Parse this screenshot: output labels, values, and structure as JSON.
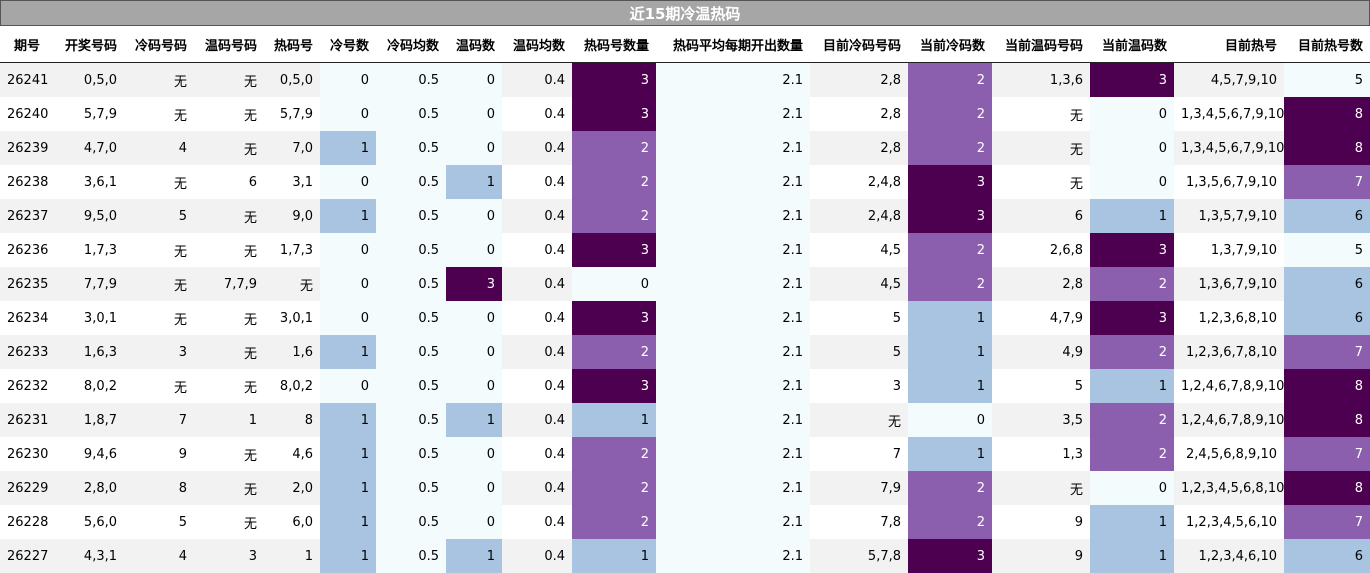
{
  "title": "近15期冷温热码",
  "headers": [
    "期号",
    "开奖号码",
    "冷码号码",
    "温码号码",
    "热码号",
    "冷号数",
    "冷码均数",
    "温码数",
    "温码均数",
    "热码号数量",
    "热码平均每期开出数量",
    "目前冷码号码",
    "当前冷码数",
    "当前温码号码",
    "当前温码数",
    "目前热号",
    "目前热号数"
  ],
  "colors": {
    "title_bg": "#a6a6a6",
    "level0": "#f4fbfc",
    "level1": "#a8c4e0",
    "level2": "#8c5fae",
    "level3": "#4d0050"
  },
  "rows": [
    [
      "26241",
      "0,5,0",
      "无",
      "无",
      "0,5,0",
      "0",
      "0.5",
      "0",
      "0.4",
      "3",
      "2.1",
      "2,8",
      "2",
      "1,3,6",
      "3",
      "4,5,7,9,10",
      "5"
    ],
    [
      "26240",
      "5,7,9",
      "无",
      "无",
      "5,7,9",
      "0",
      "0.5",
      "0",
      "0.4",
      "3",
      "2.1",
      "2,8",
      "2",
      "无",
      "0",
      "1,3,4,5,6,7,9,10",
      "8"
    ],
    [
      "26239",
      "4,7,0",
      "4",
      "无",
      "7,0",
      "1",
      "0.5",
      "0",
      "0.4",
      "2",
      "2.1",
      "2,8",
      "2",
      "无",
      "0",
      "1,3,4,5,6,7,9,10",
      "8"
    ],
    [
      "26238",
      "3,6,1",
      "无",
      "6",
      "3,1",
      "0",
      "0.5",
      "1",
      "0.4",
      "2",
      "2.1",
      "2,4,8",
      "3",
      "无",
      "0",
      "1,3,5,6,7,9,10",
      "7"
    ],
    [
      "26237",
      "9,5,0",
      "5",
      "无",
      "9,0",
      "1",
      "0.5",
      "0",
      "0.4",
      "2",
      "2.1",
      "2,4,8",
      "3",
      "6",
      "1",
      "1,3,5,7,9,10",
      "6"
    ],
    [
      "26236",
      "1,7,3",
      "无",
      "无",
      "1,7,3",
      "0",
      "0.5",
      "0",
      "0.4",
      "3",
      "2.1",
      "4,5",
      "2",
      "2,6,8",
      "3",
      "1,3,7,9,10",
      "5"
    ],
    [
      "26235",
      "7,7,9",
      "无",
      "7,7,9",
      "无",
      "0",
      "0.5",
      "3",
      "0.4",
      "0",
      "2.1",
      "4,5",
      "2",
      "2,8",
      "2",
      "1,3,6,7,9,10",
      "6"
    ],
    [
      "26234",
      "3,0,1",
      "无",
      "无",
      "3,0,1",
      "0",
      "0.5",
      "0",
      "0.4",
      "3",
      "2.1",
      "5",
      "1",
      "4,7,9",
      "3",
      "1,2,3,6,8,10",
      "6"
    ],
    [
      "26233",
      "1,6,3",
      "3",
      "无",
      "1,6",
      "1",
      "0.5",
      "0",
      "0.4",
      "2",
      "2.1",
      "5",
      "1",
      "4,9",
      "2",
      "1,2,3,6,7,8,10",
      "7"
    ],
    [
      "26232",
      "8,0,2",
      "无",
      "无",
      "8,0,2",
      "0",
      "0.5",
      "0",
      "0.4",
      "3",
      "2.1",
      "3",
      "1",
      "5",
      "1",
      "1,2,4,6,7,8,9,10",
      "8"
    ],
    [
      "26231",
      "1,8,7",
      "7",
      "1",
      "8",
      "1",
      "0.5",
      "1",
      "0.4",
      "1",
      "2.1",
      "无",
      "0",
      "3,5",
      "2",
      "1,2,4,6,7,8,9,10",
      "8"
    ],
    [
      "26230",
      "9,4,6",
      "9",
      "无",
      "4,6",
      "1",
      "0.5",
      "0",
      "0.4",
      "2",
      "2.1",
      "7",
      "1",
      "1,3",
      "2",
      "2,4,5,6,8,9,10",
      "7"
    ],
    [
      "26229",
      "2,8,0",
      "8",
      "无",
      "2,0",
      "1",
      "0.5",
      "0",
      "0.4",
      "2",
      "2.1",
      "7,9",
      "2",
      "无",
      "0",
      "1,2,3,4,5,6,8,10",
      "8"
    ],
    [
      "26228",
      "5,6,0",
      "5",
      "无",
      "6,0",
      "1",
      "0.5",
      "0",
      "0.4",
      "2",
      "2.1",
      "7,8",
      "2",
      "9",
      "1",
      "1,2,3,4,5,6,10",
      "7"
    ],
    [
      "26227",
      "4,3,1",
      "4",
      "3",
      "1",
      "1",
      "0.5",
      "1",
      "0.4",
      "1",
      "2.1",
      "5,7,8",
      "3",
      "9",
      "1",
      "1,2,3,4,6,10",
      "6"
    ]
  ]
}
